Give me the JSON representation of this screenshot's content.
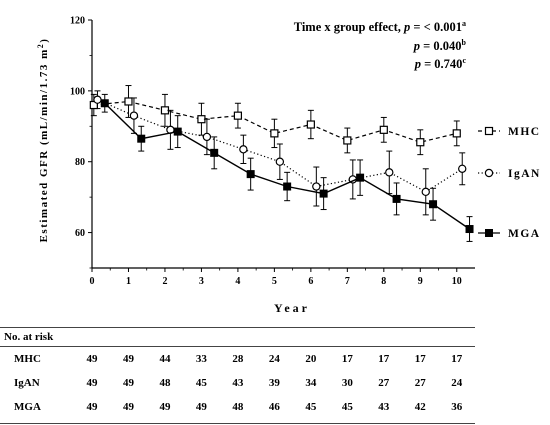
{
  "chart_data": {
    "type": "line",
    "ylabel": "Estimated GFR (mL/min/1.73 m",
    "ylabel_sup": "2",
    "ylabel_close": ")",
    "xlabel": "Year",
    "xlim": [
      0,
      10.5
    ],
    "ylim": [
      50,
      120
    ],
    "x_ticks": [
      0,
      1,
      2,
      3,
      4,
      5,
      6,
      7,
      8,
      9,
      10
    ],
    "x_tick_labels": [
      "0",
      "1",
      "2",
      "3",
      "4",
      "5",
      "6",
      "7",
      "8",
      "9",
      "10"
    ],
    "y_ticks": [
      60,
      80,
      100,
      120
    ],
    "y_tick_labels": [
      "60",
      "80",
      "100",
      "120"
    ],
    "grid": false,
    "legend_position": "right",
    "annotations": [
      {
        "prefix": "Time x group effect, ",
        "p": "p",
        "rest": " = ",
        "value": "< 0.001",
        "sup": "a"
      },
      {
        "prefix": "",
        "p": "p",
        "rest": " = ",
        "value": "0.040",
        "sup": "b"
      },
      {
        "prefix": "",
        "p": "p",
        "rest": " = ",
        "value": "0.740",
        "sup": "c"
      }
    ],
    "series": [
      {
        "name": "MHC",
        "marker": "open-square",
        "line": "dashed",
        "x": [
          0.05,
          1.0,
          2.0,
          3.0,
          4.0,
          5.0,
          6.0,
          7.0,
          8.0,
          9.0,
          10.0
        ],
        "y": [
          96.0,
          97.0,
          94.5,
          92.0,
          93.0,
          88.0,
          90.5,
          86.0,
          89.0,
          85.5,
          88.0
        ],
        "err": [
          3.0,
          4.5,
          4.5,
          4.5,
          3.5,
          4.0,
          4.0,
          3.5,
          3.5,
          3.5,
          3.5
        ]
      },
      {
        "name": "IgAN",
        "marker": "open-circle",
        "line": "dotted",
        "x": [
          0.15,
          1.15,
          2.15,
          3.15,
          4.15,
          5.15,
          6.15,
          7.15,
          8.15,
          9.15,
          10.15
        ],
        "y": [
          97.5,
          93.0,
          89.0,
          87.0,
          83.5,
          80.0,
          73.0,
          75.0,
          77.0,
          71.5,
          78.0
        ],
        "err": [
          2.5,
          5.0,
          5.5,
          5.0,
          4.0,
          5.0,
          5.5,
          5.5,
          6.0,
          6.5,
          4.5
        ]
      },
      {
        "name": "MGA",
        "marker": "filled-square",
        "line": "solid",
        "x": [
          0.35,
          1.35,
          2.35,
          3.35,
          4.35,
          5.35,
          6.35,
          7.35,
          8.35,
          9.35,
          10.35
        ],
        "y": [
          96.5,
          86.5,
          88.5,
          82.5,
          76.5,
          73.0,
          71.0,
          75.5,
          69.5,
          68.0,
          61.0
        ],
        "err": [
          2.5,
          3.5,
          4.5,
          4.5,
          4.5,
          4.0,
          4.5,
          5.0,
          4.5,
          4.5,
          3.5
        ]
      }
    ]
  },
  "risk_table": {
    "title": "No. at risk",
    "years": [
      0,
      1,
      2,
      3,
      4,
      5,
      6,
      7,
      8,
      9,
      10
    ],
    "rows": [
      {
        "name": "MHC",
        "values": [
          "49",
          "49",
          "44",
          "33",
          "28",
          "24",
          "20",
          "17",
          "17",
          "17",
          "17"
        ]
      },
      {
        "name": "IgAN",
        "values": [
          "49",
          "49",
          "48",
          "45",
          "43",
          "39",
          "34",
          "30",
          "27",
          "27",
          "24"
        ]
      },
      {
        "name": "MGA",
        "values": [
          "49",
          "49",
          "49",
          "49",
          "48",
          "46",
          "45",
          "45",
          "43",
          "42",
          "36"
        ]
      }
    ]
  }
}
